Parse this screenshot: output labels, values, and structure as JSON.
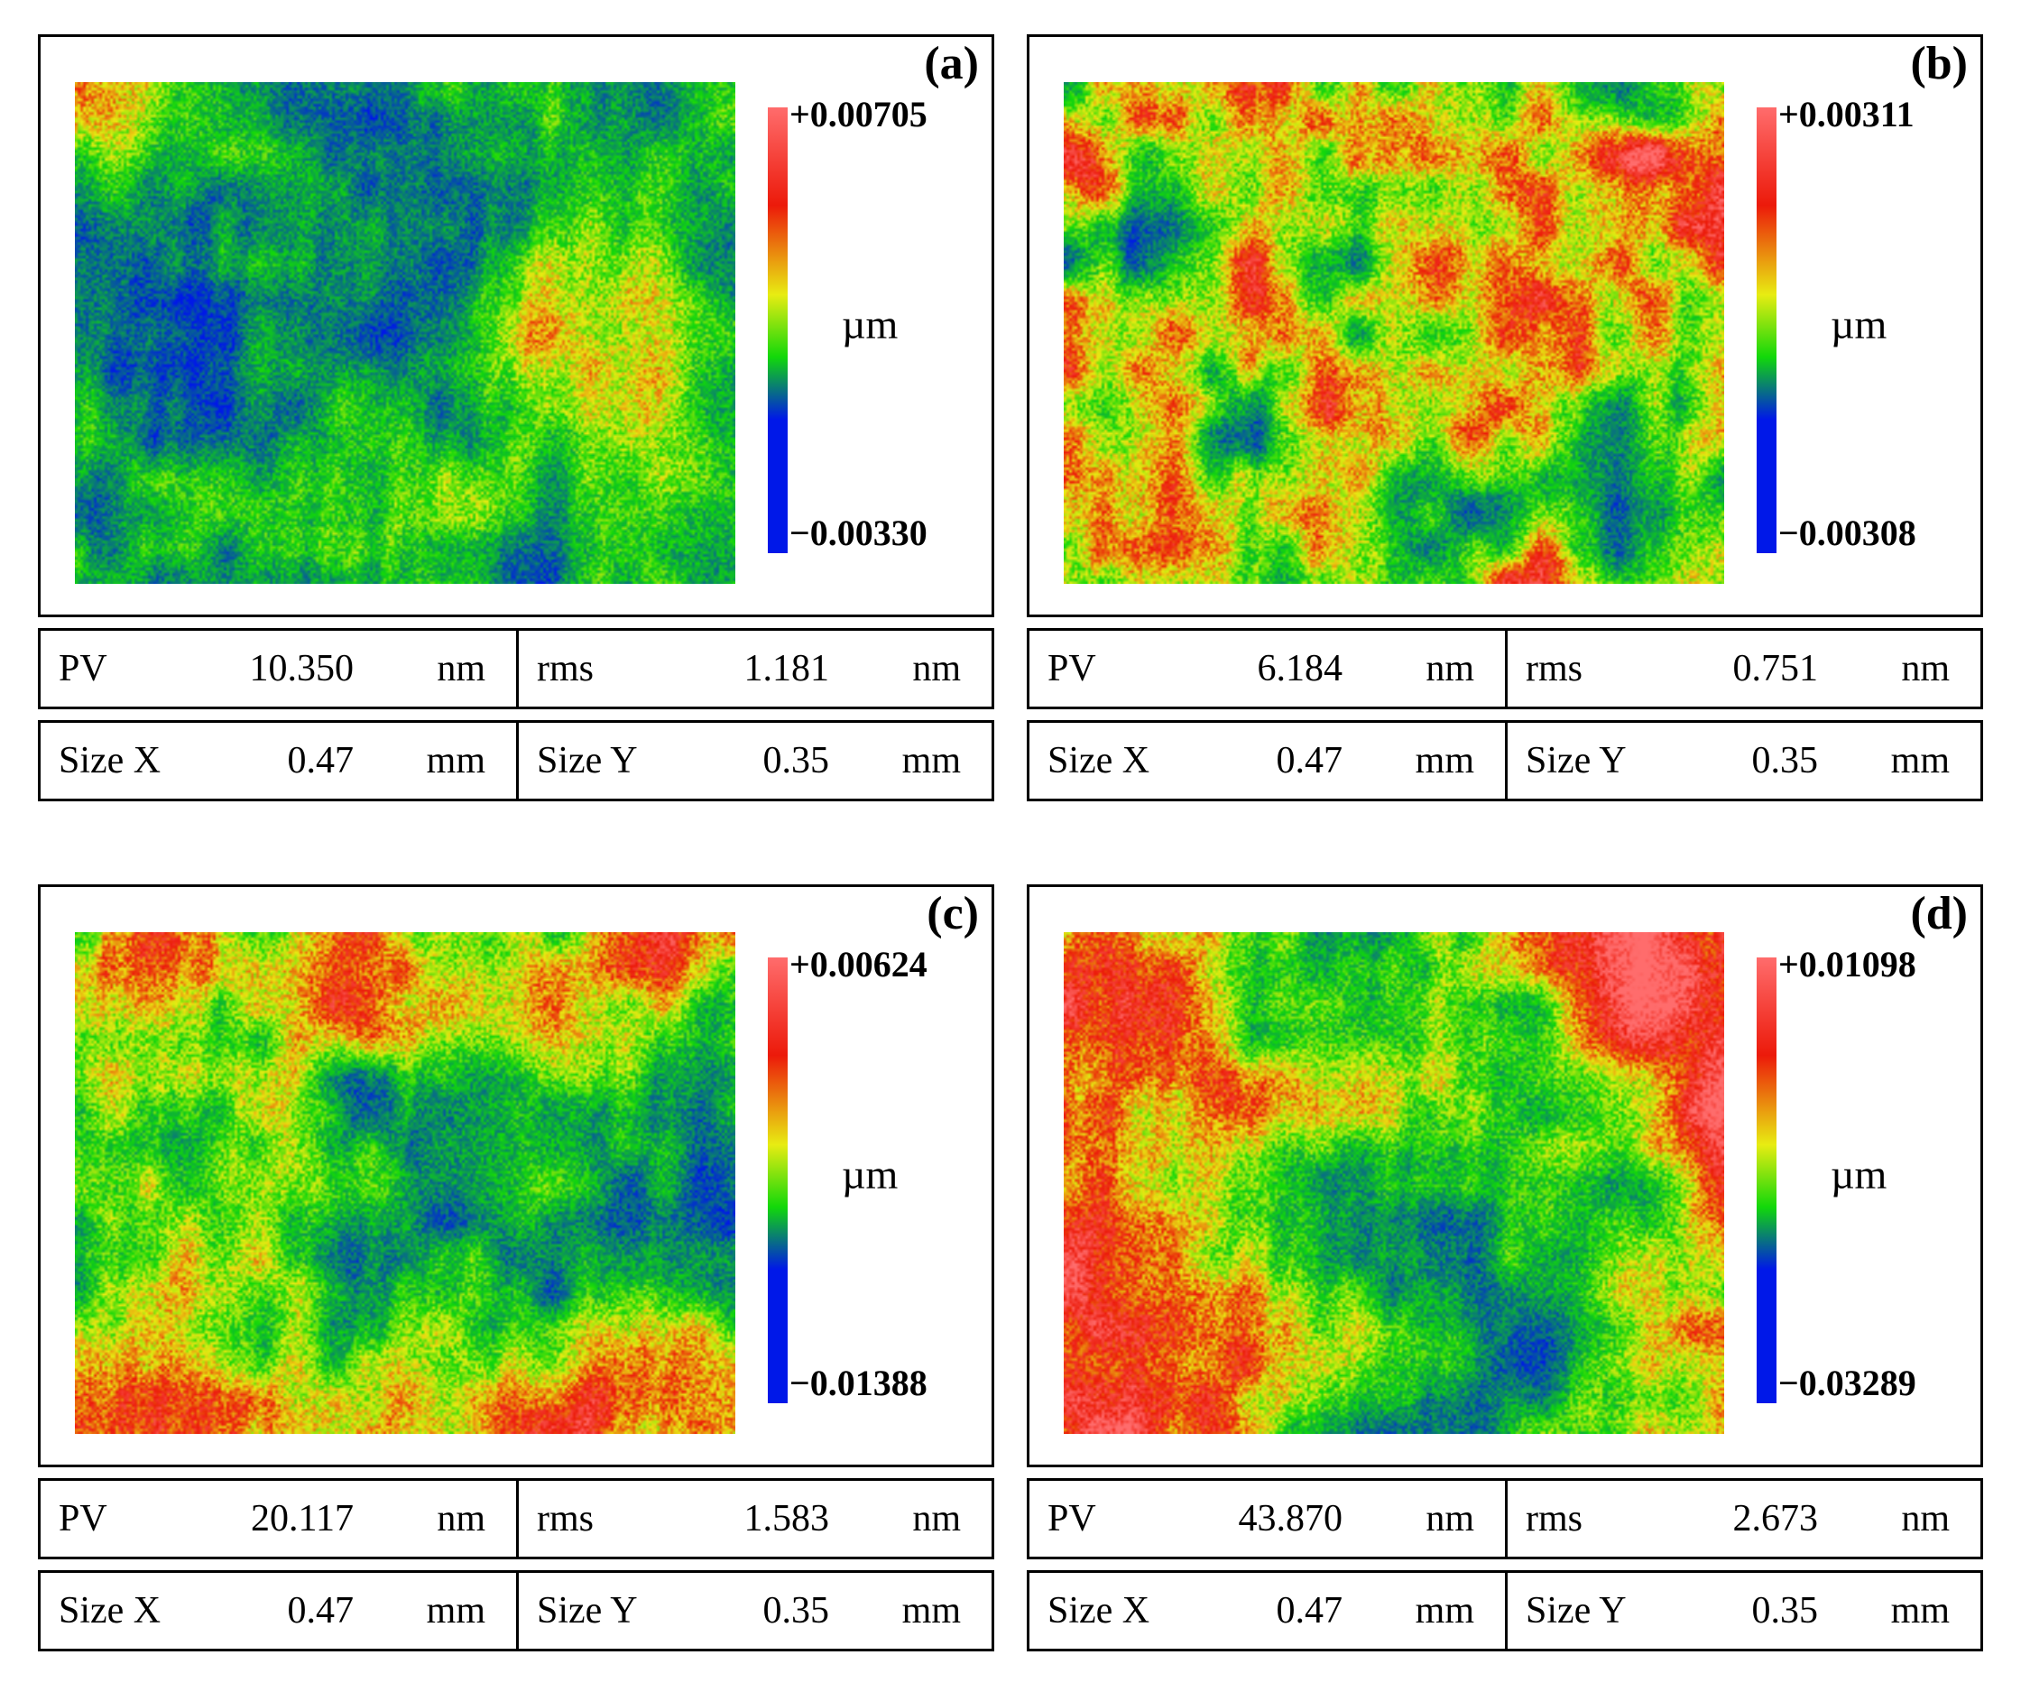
{
  "colors": {
    "blue": "#0018e8",
    "green": "#12d80a",
    "yellow": "#e8ec12",
    "red": "#ec1a0a",
    "pink": "#ff6c6c"
  },
  "panels": [
    {
      "label": "(a)",
      "scale_max": "+0.00705",
      "scale_min": "−0.00330",
      "unit": "µm",
      "pv_label": "PV",
      "pv_value": "10.350",
      "pv_unit": "nm",
      "rms_label": "rms",
      "rms_value": "1.181",
      "rms_unit": "nm",
      "sizex_label": "Size X",
      "sizex_value": "0.47",
      "sizex_unit": "mm",
      "sizey_label": "Size Y",
      "sizey_value": "0.35",
      "sizey_unit": "mm"
    },
    {
      "label": "(b)",
      "scale_max": "+0.00311",
      "scale_min": "−0.00308",
      "unit": "µm",
      "pv_label": "PV",
      "pv_value": "6.184",
      "pv_unit": "nm",
      "rms_label": "rms",
      "rms_value": "0.751",
      "rms_unit": "nm",
      "sizex_label": "Size X",
      "sizex_value": "0.47",
      "sizex_unit": "mm",
      "sizey_label": "Size Y",
      "sizey_value": "0.35",
      "sizey_unit": "mm"
    },
    {
      "label": "(c)",
      "scale_max": "+0.00624",
      "scale_min": "−0.01388",
      "unit": "µm",
      "pv_label": "PV",
      "pv_value": "20.117",
      "pv_unit": "nm",
      "rms_label": "rms",
      "rms_value": "1.583",
      "rms_unit": "nm",
      "sizex_label": "Size X",
      "sizex_value": "0.47",
      "sizex_unit": "mm",
      "sizey_label": "Size Y",
      "sizey_value": "0.35",
      "sizey_unit": "mm"
    },
    {
      "label": "(d)",
      "scale_max": "+0.01098",
      "scale_min": "−0.03289",
      "unit": "µm",
      "pv_label": "PV",
      "pv_value": "43.870",
      "pv_unit": "nm",
      "rms_label": "rms",
      "rms_value": "2.673",
      "rms_unit": "nm",
      "sizex_label": "Size X",
      "sizex_value": "0.47",
      "sizex_unit": "mm",
      "sizey_label": "Size Y",
      "sizey_value": "0.35",
      "sizey_unit": "mm"
    }
  ]
}
